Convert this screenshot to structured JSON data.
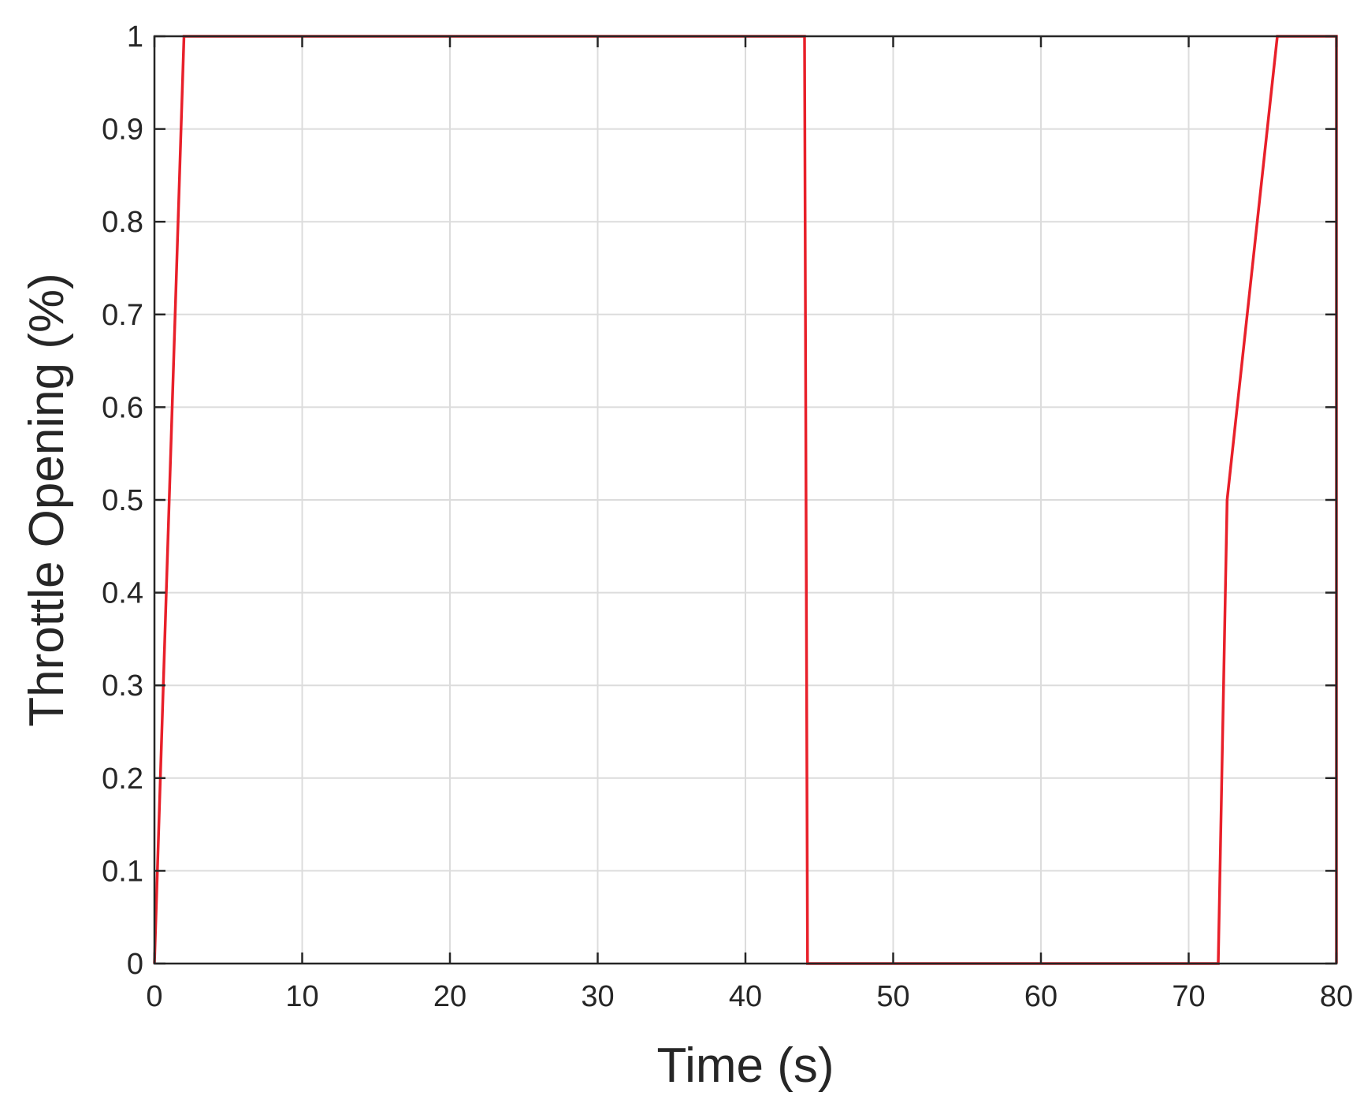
{
  "chart_data": {
    "type": "line",
    "title": "",
    "xlabel": "Time (s)",
    "ylabel": "Throttle Opening (%)",
    "xlim": [
      0,
      80
    ],
    "ylim": [
      0,
      1
    ],
    "x_ticks": [
      0,
      10,
      20,
      30,
      40,
      50,
      60,
      70,
      80
    ],
    "y_ticks": [
      0,
      0.1,
      0.2,
      0.3,
      0.4,
      0.5,
      0.6,
      0.7,
      0.8,
      0.9,
      1
    ],
    "x_tick_labels": [
      "0",
      "10",
      "20",
      "30",
      "40",
      "50",
      "60",
      "70",
      "80"
    ],
    "y_tick_labels": [
      "0",
      "0.1",
      "0.2",
      "0.3",
      "0.4",
      "0.5",
      "0.6",
      "0.7",
      "0.8",
      "0.9",
      "1"
    ],
    "grid": true,
    "box": true,
    "series": [
      {
        "color": "#e8202a",
        "x": [
          0,
          2,
          44,
          44.2,
          72,
          72.6,
          76,
          80,
          80
        ],
        "y": [
          0,
          1,
          1,
          0,
          0,
          0.5,
          1,
          1,
          0
        ]
      }
    ]
  }
}
